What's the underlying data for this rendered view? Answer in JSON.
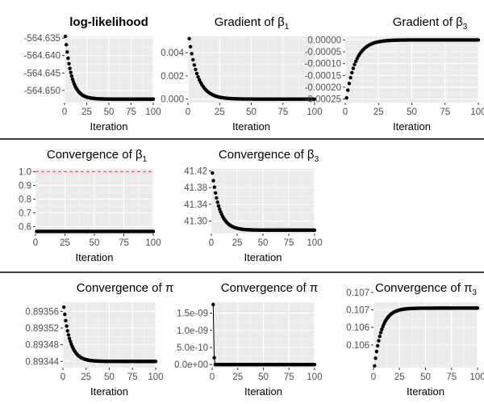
{
  "colors": {
    "panel_bg": "#ebebeb",
    "grid_major": "#ffffff",
    "point": "#000000",
    "reference_line": "#e8364a",
    "separator": "#000000"
  },
  "chart_data": [
    {
      "type": "scatter",
      "title": "log-likelihood",
      "title_bold": true,
      "xlabel": "Iteration",
      "xlim": [
        0,
        100
      ],
      "ylim": [
        -564.6535,
        -564.6345
      ],
      "xticks": [
        0,
        25,
        50,
        75,
        100
      ],
      "yticks": [
        -564.65,
        -564.645,
        -564.64,
        -564.635
      ],
      "ytick_labels": [
        "-564.650",
        "-564.645",
        "-564.640",
        "-564.635"
      ],
      "series": [
        {
          "x": [
            1,
            100
          ],
          "curve": "exp_decay",
          "start": -564.6345,
          "end": -564.6525,
          "tau": 7
        }
      ]
    },
    {
      "type": "scatter",
      "title": "Gradient of β",
      "title_sub": "1",
      "xlabel": "Iteration",
      "xlim": [
        0,
        100
      ],
      "ylim": [
        -0.0003,
        0.0054
      ],
      "xticks": [
        0,
        25,
        50,
        75,
        100
      ],
      "yticks": [
        0,
        0.002,
        0.004
      ],
      "ytick_labels": [
        "0.000",
        "0.002",
        "0.004"
      ],
      "series": [
        {
          "x": [
            1,
            100
          ],
          "curve": "exp_decay",
          "start": 0.0052,
          "end": 0,
          "tau": 7
        }
      ]
    },
    {
      "type": "scatter",
      "title": "Gradient of β",
      "title_sub": "3",
      "xlabel": "Iteration",
      "xlim": [
        0,
        100
      ],
      "ylim": [
        -0.000265,
        1.5e-05
      ],
      "xticks": [
        0,
        25,
        50,
        75,
        100
      ],
      "yticks": [
        -0.00025,
        -0.0002,
        -0.00015,
        -0.0001,
        -5e-05,
        0
      ],
      "ytick_labels": [
        "-0.00025",
        "-0.00020",
        "-0.00015",
        "-0.00010",
        "-0.00005",
        "0.00000"
      ],
      "series": [
        {
          "x": [
            1,
            100
          ],
          "curve": "exp_decay",
          "start": -0.000245,
          "end": 0,
          "tau": 7
        }
      ]
    },
    {
      "type": "scatter",
      "title": "Convergence of β",
      "title_sub": "1",
      "xlabel": "Iteration",
      "xlim": [
        0,
        100
      ],
      "ylim": [
        0.55,
        1.02
      ],
      "xticks": [
        0,
        25,
        50,
        75,
        100
      ],
      "yticks": [
        0.6,
        0.7,
        0.8,
        0.9,
        1.0
      ],
      "ytick_labels": [
        "0.6",
        "0.7",
        "0.8",
        "0.9",
        "1.0"
      ],
      "hline": {
        "y": 1.0,
        "style": "dashed"
      },
      "series": [
        {
          "x": [
            1,
            100
          ],
          "curve": "constant",
          "start": 0.565,
          "end": 0.565,
          "tau": 1
        }
      ]
    },
    {
      "type": "scatter",
      "title": "Convergence of β",
      "title_sub": "3",
      "xlabel": "Iteration",
      "xlim": [
        0,
        100
      ],
      "ylim": [
        41.27,
        41.425
      ],
      "xticks": [
        0,
        25,
        50,
        75,
        100
      ],
      "yticks": [
        41.3,
        41.34,
        41.38,
        41.42
      ],
      "ytick_labels": [
        "41.30",
        "41.34",
        "41.38",
        "41.42"
      ],
      "series": [
        {
          "x": [
            1,
            100
          ],
          "curve": "exp_decay",
          "start": 41.415,
          "end": 41.278,
          "tau": 7
        }
      ]
    },
    {
      "type": "scatter",
      "title": "Convergence of π",
      "title_sub": "",
      "xlabel": "Iteration",
      "xlim": [
        0,
        100
      ],
      "ylim": [
        0.893425,
        0.893582
      ],
      "xticks": [
        0,
        25,
        50,
        75,
        100
      ],
      "yticks": [
        0.89344,
        0.89348,
        0.89352,
        0.89356
      ],
      "ytick_labels": [
        "0.89344",
        "0.89348",
        "0.89352",
        "0.89356"
      ],
      "series": [
        {
          "x": [
            1,
            100
          ],
          "curve": "exp_decay",
          "start": 0.89357,
          "end": 0.89344,
          "tau": 7
        }
      ]
    },
    {
      "type": "line",
      "title": "Convergence of π",
      "title_sub": "",
      "xlabel": "Iteration",
      "xlim": [
        0,
        100
      ],
      "ylim": [
        -9e-11,
        1.82e-09
      ],
      "xticks": [
        0,
        25,
        50,
        75,
        100
      ],
      "yticks": [
        0,
        5e-10,
        1e-09,
        1.5e-09
      ],
      "ytick_labels": [
        "0.0e+00",
        "5.0e-10",
        "1.0e-09",
        "1.5e-09"
      ],
      "series": [
        {
          "x": [
            1,
            100
          ],
          "curve": "spike",
          "start": 1.75e-09,
          "end": 0,
          "second": 2e-10
        }
      ]
    },
    {
      "type": "scatter",
      "title": "Convergence of π",
      "title_sub": "3",
      "xlabel": "Iteration",
      "xlim": [
        0,
        100
      ],
      "ylim": [
        0.10535,
        0.10722
      ],
      "xticks": [
        0,
        25,
        50,
        75,
        100
      ],
      "yticks": [
        0.106,
        0.1065,
        0.107,
        0.1075
      ],
      "ytick_labels": [
        "0.106",
        "0.106",
        "0.107",
        "0.107"
      ],
      "series": [
        {
          "x": [
            1,
            100
          ],
          "curve": "exp_rise",
          "start": 0.1054,
          "end": 0.10705,
          "tau": 7
        }
      ]
    }
  ]
}
